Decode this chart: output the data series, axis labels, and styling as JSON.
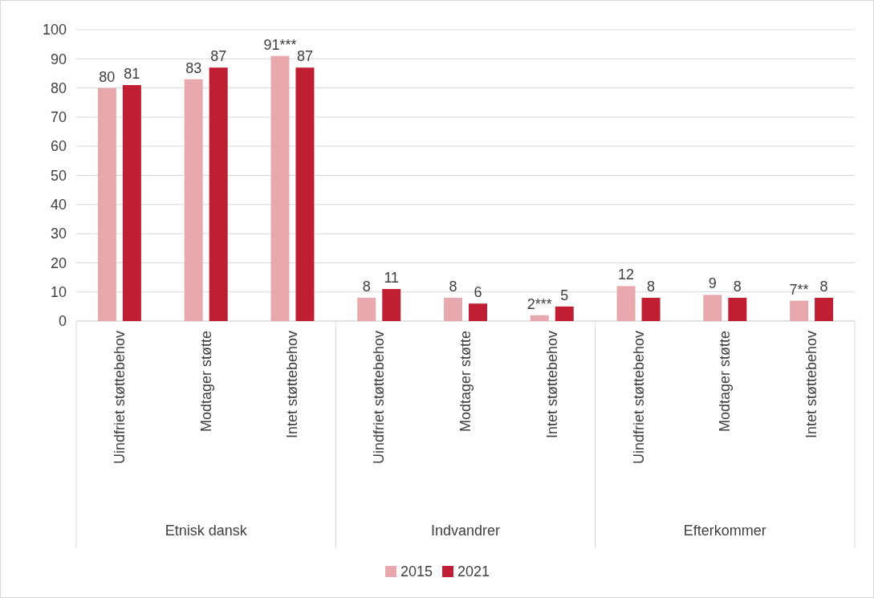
{
  "chart_data": {
    "type": "bar",
    "categories": [
      "Uindfriet støttebehov",
      "Modtager støtte",
      "Intet støttebehov",
      "Uindfriet støttebehov",
      "Modtager støtte",
      "Intet støttebehov",
      "Uindfriet støttebehov",
      "Modtager støtte",
      "Intet støttebehov"
    ],
    "series": [
      {
        "name": "2015",
        "color": "#e8a9ae",
        "values": [
          80,
          83,
          91,
          8,
          8,
          2,
          12,
          9,
          7
        ],
        "value_labels": [
          "80",
          "83",
          "91***",
          "8",
          "8",
          "2***",
          "12",
          "9",
          "7**"
        ]
      },
      {
        "name": "2021",
        "color": "#c01f33",
        "values": [
          81,
          87,
          87,
          11,
          6,
          5,
          8,
          8,
          8
        ],
        "value_labels": [
          "81",
          "87",
          "87",
          "11",
          "6",
          "5",
          "8",
          "8",
          "8"
        ]
      }
    ],
    "annotations": [
      "Etnisk dansk",
      "Indvandrer",
      "Efterkommer"
    ],
    "ylim": [
      0,
      100
    ],
    "yticks": [
      0,
      10,
      20,
      30,
      40,
      50,
      60,
      70,
      80,
      90,
      100
    ],
    "grid": "y",
    "legend": "bottom"
  }
}
